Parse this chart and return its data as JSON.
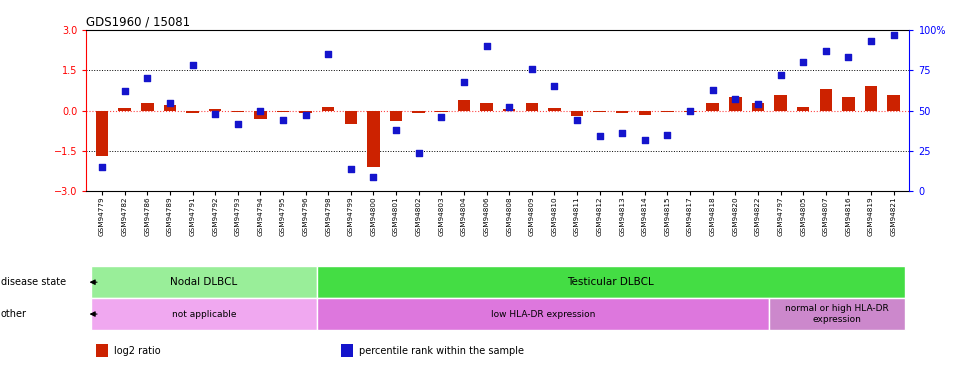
{
  "title": "GDS1960 / 15081",
  "samples": [
    "GSM94779",
    "GSM94782",
    "GSM94786",
    "GSM94789",
    "GSM94791",
    "GSM94792",
    "GSM94793",
    "GSM94794",
    "GSM94795",
    "GSM94796",
    "GSM94798",
    "GSM94799",
    "GSM94800",
    "GSM94801",
    "GSM94802",
    "GSM94803",
    "GSM94804",
    "GSM94806",
    "GSM94808",
    "GSM94809",
    "GSM94810",
    "GSM94811",
    "GSM94812",
    "GSM94813",
    "GSM94814",
    "GSM94815",
    "GSM94817",
    "GSM94818",
    "GSM94820",
    "GSM94822",
    "GSM94797",
    "GSM94805",
    "GSM94807",
    "GSM94816",
    "GSM94819",
    "GSM94821"
  ],
  "log2_ratio": [
    -1.7,
    0.1,
    0.3,
    0.2,
    -0.1,
    0.05,
    -0.05,
    -0.3,
    -0.05,
    -0.1,
    0.15,
    -0.5,
    -2.1,
    -0.4,
    -0.1,
    -0.05,
    0.4,
    0.3,
    0.05,
    0.3,
    0.1,
    -0.2,
    -0.05,
    -0.1,
    -0.15,
    -0.05,
    -0.05,
    0.3,
    0.5,
    0.3,
    0.6,
    0.15,
    0.8,
    0.5,
    0.9,
    0.6
  ],
  "percentile": [
    15,
    62,
    70,
    55,
    78,
    48,
    42,
    50,
    44,
    47,
    85,
    14,
    9,
    38,
    24,
    46,
    68,
    90,
    52,
    76,
    65,
    44,
    34,
    36,
    32,
    35,
    50,
    63,
    57,
    54,
    72,
    80,
    87,
    83,
    93,
    97
  ],
  "ylim": [
    -3,
    3
  ],
  "yticks_left": [
    -3,
    -1.5,
    0,
    1.5,
    3
  ],
  "yticks_right": [
    0,
    25,
    50,
    75,
    100
  ],
  "bar_color": "#cc2200",
  "scatter_color": "#1414cc",
  "disease_state_groups": [
    {
      "label": "Nodal DLBCL",
      "start": 0,
      "end": 10,
      "color": "#99ee99"
    },
    {
      "label": "Testicular DLBCL",
      "start": 10,
      "end": 36,
      "color": "#44dd44"
    }
  ],
  "other_groups": [
    {
      "label": "not applicable",
      "start": 0,
      "end": 10,
      "color": "#f0a8f0"
    },
    {
      "label": "low HLA-DR expression",
      "start": 10,
      "end": 30,
      "color": "#dd77dd"
    },
    {
      "label": "normal or high HLA-DR\nexpression",
      "start": 30,
      "end": 36,
      "color": "#cc88cc"
    }
  ],
  "legend_items": [
    {
      "color": "#cc2200",
      "label": "log2 ratio"
    },
    {
      "color": "#1414cc",
      "label": "percentile rank within the sample"
    }
  ]
}
